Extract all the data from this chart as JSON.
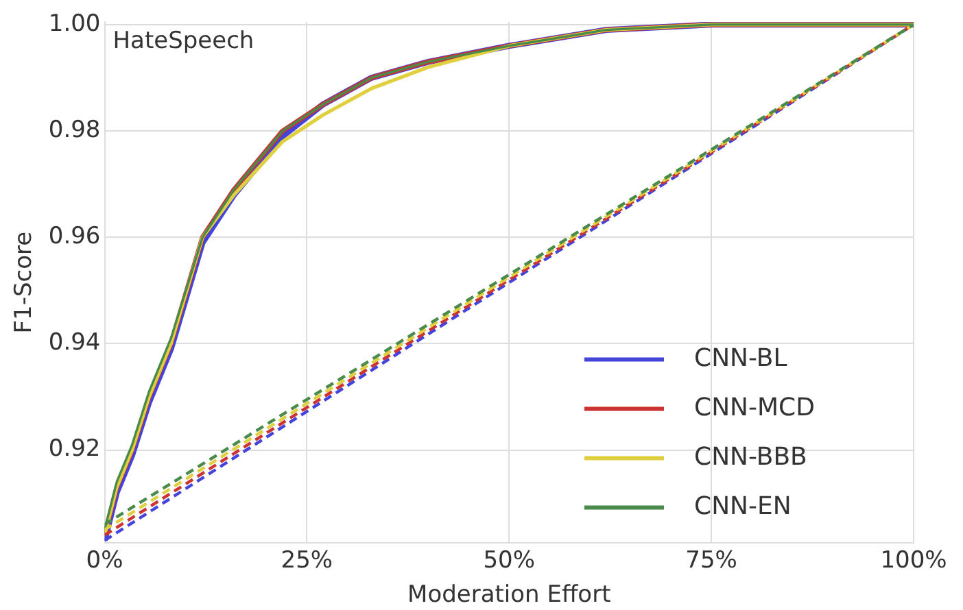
{
  "chart_data": {
    "type": "line",
    "xlabel": "Moderation Effort",
    "ylabel": "F1-Score",
    "annotations": [
      "HateSpeech"
    ],
    "xlim": [
      0,
      100
    ],
    "xticks": [
      {
        "value": 0,
        "label": "0%"
      },
      {
        "value": 25,
        "label": "25%"
      },
      {
        "value": 50,
        "label": "50%"
      },
      {
        "value": 75,
        "label": "75%"
      },
      {
        "value": 100,
        "label": "100%"
      }
    ],
    "ylim": [
      0.9025,
      1.0005
    ],
    "yticks": [
      0.92,
      0.94,
      0.96,
      0.98,
      {
        "value": 1,
        "label": "1.00"
      }
    ],
    "grid": true,
    "legend": "bottom right",
    "marker": "none",
    "series": [
      {
        "name": "CNN-BL",
        "color": "#4444dd",
        "line_style": "solid",
        "x": [
          0,
          1.5,
          3.4,
          5.5,
          8.2,
          12.1,
          16,
          22,
          27,
          33,
          40,
          50,
          62,
          75,
          87,
          100
        ],
        "values": [
          0.903,
          0.912,
          0.919,
          0.929,
          0.939,
          0.959,
          0.968,
          0.979,
          0.985,
          0.99,
          0.993,
          0.996,
          0.999,
          1.0,
          1.0,
          1.0
        ]
      },
      {
        "name": "CNN-MCD",
        "color": "#cc3333",
        "line_style": "solid",
        "x": [
          0,
          1.5,
          3.4,
          5.5,
          8.2,
          12.1,
          16,
          22,
          27,
          33,
          40,
          50,
          62,
          75,
          87,
          100
        ],
        "values": [
          0.904,
          0.913,
          0.92,
          0.93,
          0.94,
          0.96,
          0.969,
          0.98,
          0.985,
          0.99,
          0.993,
          0.996,
          0.999,
          1.0,
          1.0,
          1.0
        ]
      },
      {
        "name": "CNN-BBB",
        "color": "#e0d040",
        "line_style": "solid",
        "x": [
          0,
          1.5,
          3.4,
          5.5,
          8.2,
          12.1,
          16,
          22,
          27,
          33,
          40,
          50,
          62,
          75,
          87,
          100
        ],
        "values": [
          0.904,
          0.913,
          0.92,
          0.93,
          0.94,
          0.96,
          0.968,
          0.978,
          0.983,
          0.988,
          0.992,
          0.996,
          0.999,
          1.0,
          1.0,
          1.0
        ]
      },
      {
        "name": "CNN-EN",
        "color": "#4a8a4a",
        "line_style": "solid",
        "x": [
          0,
          1.5,
          3.4,
          5.5,
          8.2,
          12.1,
          16,
          22,
          27,
          33,
          40,
          50,
          62,
          75,
          87,
          100
        ],
        "values": [
          0.905,
          0.914,
          0.921,
          0.931,
          0.941,
          0.96,
          0.969,
          0.98,
          0.985,
          0.99,
          0.993,
          0.996,
          0.999,
          1.0,
          1.0,
          1.0
        ]
      },
      {
        "color": "#4444dd",
        "line_style": "dashed",
        "x": [
          0,
          100
        ],
        "values": [
          0.903,
          1.0
        ]
      },
      {
        "color": "#cc3333",
        "line_style": "dashed",
        "x": [
          0,
          100
        ],
        "values": [
          0.904,
          1.0
        ]
      },
      {
        "color": "#e0d040",
        "line_style": "dashed",
        "x": [
          0,
          100
        ],
        "values": [
          0.905,
          1.0
        ]
      },
      {
        "color": "#4a8a4a",
        "line_style": "dashed",
        "x": [
          0,
          100
        ],
        "values": [
          0.906,
          1.0
        ]
      }
    ]
  }
}
